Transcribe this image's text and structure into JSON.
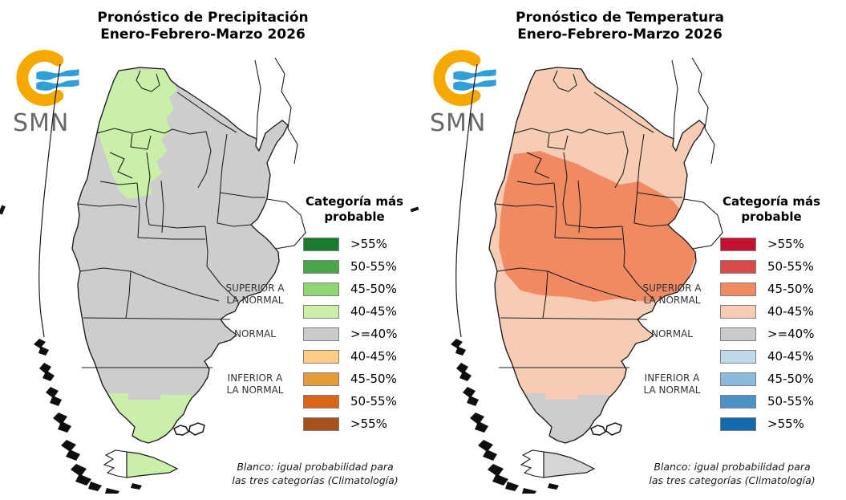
{
  "shared": {
    "logo": {
      "label": "SMN",
      "orange": "#F7A800",
      "blue": "#2F9FDA",
      "text_color": "#66686b"
    },
    "legend": {
      "header_line1": "Categoría más",
      "header_line2": "probable",
      "groups": [
        {
          "line1": "SUPERIOR A",
          "line2": "LA NORMAL"
        },
        {
          "line1": "NORMAL",
          "line2": ""
        },
        {
          "line1": "INFERIOR A",
          "line2": "LA NORMAL"
        }
      ],
      "footnote_line1": "Blanco: igual probabilidad para",
      "footnote_line2": "las tres categorías (Climatología)"
    }
  },
  "panels": [
    {
      "id": "precipitation",
      "title_line1": "Pronóstico de Precipitación",
      "title_line2": "Enero-Febrero-Marzo 2026",
      "legend_rows": [
        {
          "label": ">55%",
          "color": "#1a7a2e"
        },
        {
          "label": "50-55%",
          "color": "#48a648"
        },
        {
          "label": "45-50%",
          "color": "#8ed66f"
        },
        {
          "label": "40-45%",
          "color": "#c9efa9"
        },
        {
          "label": ">=40%",
          "color": "#cbcbcb"
        },
        {
          "label": "40-45%",
          "color": "#fccd82"
        },
        {
          "label": "45-50%",
          "color": "#e79a38"
        },
        {
          "label": "50-55%",
          "color": "#d96617"
        },
        {
          "label": ">55%",
          "color": "#a6511d"
        }
      ],
      "map_fills": {
        "base": "#cdcdcd",
        "northwest": "#c9efa9",
        "central_west": "none",
        "far_south": "#c9efa9",
        "tierra_del_fuego": "#c9efa9"
      }
    },
    {
      "id": "temperature",
      "title_line1": "Pronóstico de Temperatura",
      "title_line2": "Enero-Febrero-Marzo 2026",
      "legend_rows": [
        {
          "label": ">55%",
          "color": "#c2112f"
        },
        {
          "label": "50-55%",
          "color": "#d84a4c"
        },
        {
          "label": "45-50%",
          "color": "#ef8a62"
        },
        {
          "label": "40-45%",
          "color": "#f6ccb4"
        },
        {
          "label": ">=40%",
          "color": "#cbcbcb"
        },
        {
          "label": "40-45%",
          "color": "#bedaeb"
        },
        {
          "label": "45-50%",
          "color": "#8abbdb"
        },
        {
          "label": "50-55%",
          "color": "#4b92c5"
        },
        {
          "label": ">55%",
          "color": "#1169ae"
        }
      ],
      "map_fills": {
        "base": "#f6ccb4",
        "northwest": "none",
        "central_west": "#ef8a62",
        "far_south": "#cdcdcd",
        "tierra_del_fuego": "#d6d6d6"
      }
    }
  ]
}
